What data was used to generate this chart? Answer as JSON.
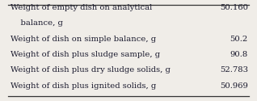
{
  "rows": [
    [
      "Weight of empty dish on analytical",
      "50.160"
    ],
    [
      "    balance, g",
      ""
    ],
    [
      "Weight of dish on simple balance, g",
      "50.2"
    ],
    [
      "Weight of dish plus sludge sample, g",
      "90.8"
    ],
    [
      "Weight of dish plus dry sludge solids, g",
      "52.783"
    ],
    [
      "Weight of dish plus ignited solids, g",
      "50.969"
    ]
  ],
  "background_color": "#f0ede8",
  "text_color": "#1a1a2e",
  "font_size": 7.2,
  "line_color": "#333333",
  "line_lw": 0.9
}
